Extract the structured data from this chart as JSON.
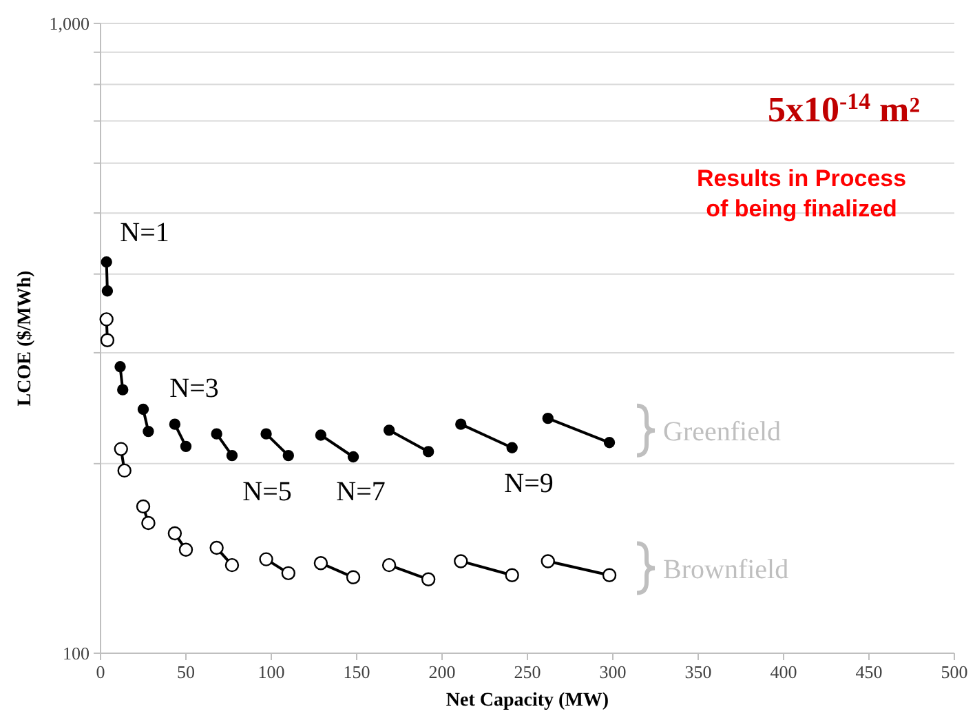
{
  "chart_data": {
    "type": "line",
    "title": "5x10$^{-14}$ m²",
    "xlabel": "Net Capacity (MW)",
    "ylabel": "LCOE ($/MWh)",
    "xlim": [
      0,
      500
    ],
    "ylim": [
      100,
      1000
    ],
    "log": "y",
    "grid": "y",
    "marker": "circle",
    "legend": false,
    "xticks": [
      0,
      50,
      100,
      150,
      200,
      250,
      300,
      350,
      400,
      450,
      500
    ],
    "yticks": [
      {
        "value": 100,
        "label": "100"
      },
      {
        "value": 200,
        "label": null
      },
      {
        "value": 300,
        "label": null
      },
      {
        "value": 400,
        "label": null
      },
      {
        "value": 500,
        "label": null
      },
      {
        "value": 600,
        "label": null
      },
      {
        "value": 700,
        "label": null
      },
      {
        "value": 800,
        "label": null
      },
      {
        "value": 900,
        "label": null
      },
      {
        "value": 1000,
        "label": "1,000"
      }
    ],
    "series": [
      {
        "color": "#000000",
        "x": [
          3.5,
          4
        ],
        "values": [
          418,
          376
        ]
      },
      {
        "color": "#000000",
        "x": [
          11.5,
          13
        ],
        "values": [
          285,
          262
        ]
      },
      {
        "color": "#000000",
        "x": [
          25,
          28
        ],
        "values": [
          244,
          225
        ]
      },
      {
        "color": "#000000",
        "x": [
          43.5,
          50
        ],
        "values": [
          231,
          213
        ]
      },
      {
        "color": "#000000",
        "x": [
          68,
          77
        ],
        "values": [
          223,
          206
        ]
      },
      {
        "color": "#000000",
        "x": [
          97,
          110
        ],
        "values": [
          223,
          206
        ]
      },
      {
        "color": "#000000",
        "x": [
          129,
          148
        ],
        "values": [
          222,
          205
        ]
      },
      {
        "color": "#000000",
        "x": [
          169,
          192
        ],
        "values": [
          226,
          209
        ]
      },
      {
        "color": "#000000",
        "x": [
          211,
          241
        ],
        "values": [
          231,
          212
        ]
      },
      {
        "name": "Greenfield",
        "color": "#000000",
        "x": [
          262,
          298
        ],
        "values": [
          236,
          216
        ]
      },
      {
        "color": "#000000",
        "x": [
          3.5,
          4
        ],
        "values": [
          339,
          314
        ]
      },
      {
        "color": "#000000",
        "x": [
          12,
          14
        ],
        "values": [
          211,
          195
        ]
      },
      {
        "color": "#000000",
        "x": [
          25,
          28
        ],
        "values": [
          171,
          161
        ]
      },
      {
        "color": "#000000",
        "x": [
          43.5,
          50
        ],
        "values": [
          155,
          146
        ]
      },
      {
        "color": "#000000",
        "x": [
          68,
          77
        ],
        "values": [
          147,
          138
        ]
      },
      {
        "color": "#000000",
        "x": [
          97,
          110
        ],
        "values": [
          141,
          134
        ]
      },
      {
        "color": "#000000",
        "x": [
          129,
          148
        ],
        "values": [
          139,
          132
        ]
      },
      {
        "color": "#000000",
        "x": [
          169,
          192
        ],
        "values": [
          138,
          131
        ]
      },
      {
        "color": "#000000",
        "x": [
          211,
          241
        ],
        "values": [
          140,
          133
        ]
      },
      {
        "name": "Brownfield",
        "color": "#000000",
        "x": [
          262,
          298
        ],
        "values": [
          140,
          133
        ]
      }
    ],
    "annotations": [
      "Results in Process of being finalized",
      "N=1",
      "N=3",
      "N=5",
      "N=7",
      "N=9"
    ]
  }
}
